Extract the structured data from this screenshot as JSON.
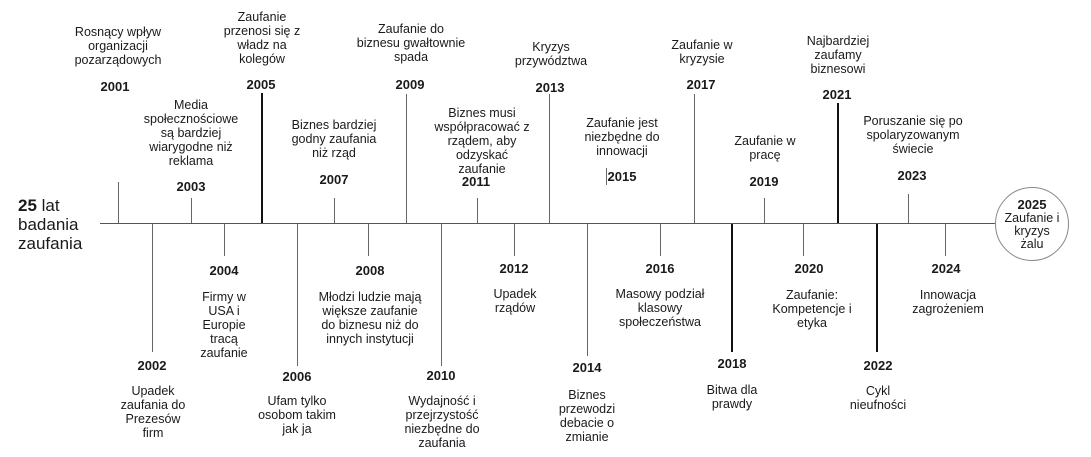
{
  "title": {
    "number": "25",
    "line1_rest": "lat",
    "line2": "badania",
    "line3": "zaufania"
  },
  "events": [
    {
      "year": "2001",
      "text": "Rosnący wpływ organizacji pozarządowych"
    },
    {
      "year": "2002",
      "text": "Upadek zaufania do Prezesów firm"
    },
    {
      "year": "2003",
      "text": "Media społecznościowe są bardziej wiarygodne niż reklama"
    },
    {
      "year": "2004",
      "text": "Firmy w USA i Europie tracą zaufanie"
    },
    {
      "year": "2005",
      "text": "Zaufanie przenosi się z władz na kolegów"
    },
    {
      "year": "2006",
      "text": "Ufam tylko osobom takim jak ja"
    },
    {
      "year": "2007",
      "text": "Biznes bardziej godny zaufania niż rząd"
    },
    {
      "year": "2008",
      "text": "Młodzi ludzie mają większe zaufanie do biznesu niż do innych instytucji"
    },
    {
      "year": "2009",
      "text": "Zaufanie do biznesu gwałtownie spada"
    },
    {
      "year": "2010",
      "text": "Wydajność i przejrzystość niezbędne do zaufania"
    },
    {
      "year": "2011",
      "text": "Biznes musi współpracować z rządem, aby odzyskać zaufanie"
    },
    {
      "year": "2012",
      "text": "Upadek rządów"
    },
    {
      "year": "2013",
      "text": "Kryzys przywództwa"
    },
    {
      "year": "2014",
      "text": "Biznes przewodzi debacie o zmianie"
    },
    {
      "year": "2015",
      "text": "Zaufanie jest niezbędne do innowacji"
    },
    {
      "year": "2016",
      "text": "Masowy podział klasowy społeczeństwa"
    },
    {
      "year": "2017",
      "text": "Zaufanie w kryzysie"
    },
    {
      "year": "2018",
      "text": "Bitwa dla prawdy"
    },
    {
      "year": "2019",
      "text": "Zaufanie w pracę"
    },
    {
      "year": "2020",
      "text": "Zaufanie: Kompetencje i etyka"
    },
    {
      "year": "2021",
      "text": "Najbardziej zaufamy biznesowi"
    },
    {
      "year": "2022",
      "text": "Cykl nieufności"
    },
    {
      "year": "2023",
      "text": "Poruszanie się po spolaryzowanym świecie"
    },
    {
      "year": "2024",
      "text": "Innowacja zagrożeniem"
    }
  ],
  "final": {
    "year": "2025",
    "text": "Zaufanie i kryzys żalu"
  }
}
